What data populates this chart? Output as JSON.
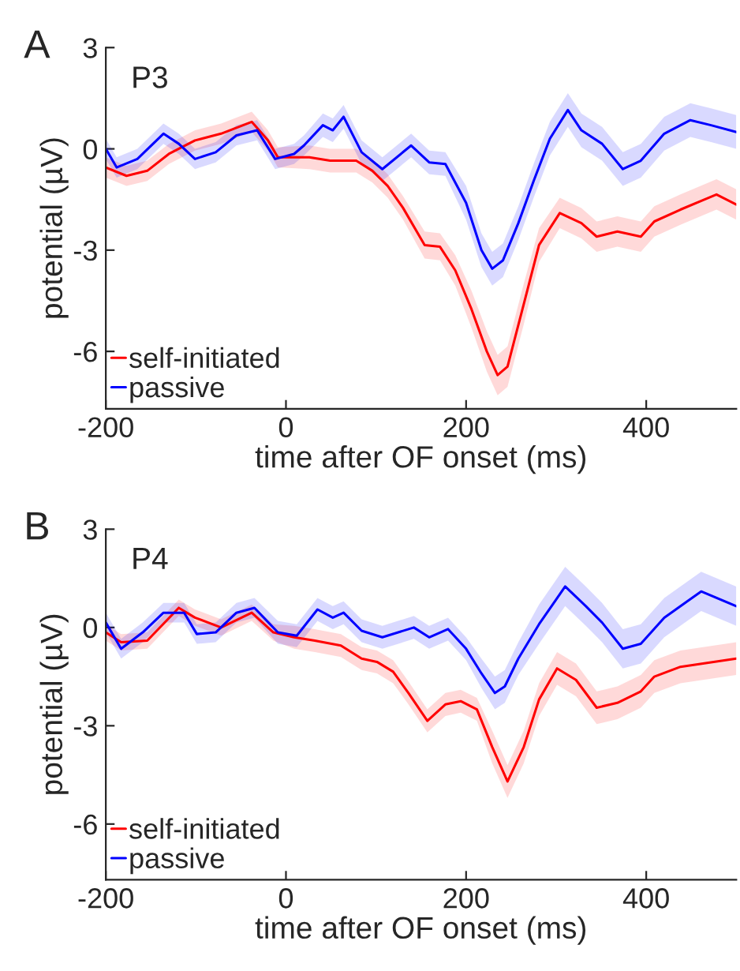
{
  "chart_data": [
    {
      "type": "line",
      "annotations": [
        "A",
        "P3"
      ],
      "xlabel": "time after OF onset (ms)",
      "ylabel": "potential (µV)",
      "xlim": [
        -200,
        500
      ],
      "xticks": [
        -200,
        0,
        200,
        400
      ],
      "ylim": [
        -7.7,
        3
      ],
      "yticks": [
        -6,
        -3,
        0,
        3
      ],
      "legend": "bottom left",
      "grid": false,
      "series": [
        {
          "name": "self-initiated",
          "color": "#ff0000",
          "x": [
            -200,
            -177,
            -154,
            -130,
            -101,
            -72,
            -38,
            -20,
            -9,
            26,
            49,
            78,
            96,
            113,
            130,
            154,
            171,
            188,
            206,
            223,
            235,
            246,
            264,
            281,
            304,
            328,
            345,
            368,
            394,
            409,
            438,
            478,
            500
          ],
          "values": [
            -0.55,
            -0.8,
            -0.65,
            -0.15,
            0.25,
            0.45,
            0.8,
            0.25,
            -0.25,
            -0.25,
            -0.35,
            -0.35,
            -0.65,
            -1.1,
            -1.75,
            -2.85,
            -2.9,
            -3.6,
            -4.75,
            -6.0,
            -6.7,
            -6.45,
            -4.6,
            -2.85,
            -1.9,
            -2.2,
            -2.6,
            -2.45,
            -2.6,
            -2.15,
            -1.8,
            -1.35,
            -1.65
          ],
          "lower": [
            -0.85,
            -1.1,
            -0.95,
            -0.45,
            -0.05,
            0.15,
            0.5,
            -0.05,
            -0.55,
            -0.6,
            -0.7,
            -0.7,
            -1.0,
            -1.45,
            -2.1,
            -3.25,
            -3.3,
            -4.05,
            -5.3,
            -6.6,
            -7.3,
            -7.05,
            -5.2,
            -3.35,
            -2.35,
            -2.65,
            -3.05,
            -2.9,
            -3.05,
            -2.6,
            -2.25,
            -1.8,
            -2.1
          ],
          "upper": [
            -0.25,
            -0.5,
            -0.35,
            0.15,
            0.55,
            0.75,
            1.1,
            0.55,
            0.05,
            0.1,
            0.0,
            0.0,
            -0.3,
            -0.75,
            -1.4,
            -2.45,
            -2.5,
            -3.15,
            -4.2,
            -5.4,
            -6.1,
            -5.85,
            -4.0,
            -2.35,
            -1.45,
            -1.75,
            -2.15,
            -2.0,
            -2.15,
            -1.7,
            -1.35,
            -0.9,
            -1.2
          ]
        },
        {
          "name": "passive",
          "color": "#0000ff",
          "x": [
            -200,
            -188,
            -165,
            -136,
            -119,
            -101,
            -78,
            -55,
            -32,
            -12,
            9,
            20,
            41,
            52,
            64,
            84,
            107,
            139,
            159,
            177,
            200,
            217,
            229,
            241,
            258,
            275,
            293,
            313,
            328,
            351,
            374,
            394,
            420,
            449,
            472,
            500
          ],
          "values": [
            0,
            -0.55,
            -0.3,
            0.45,
            0.15,
            -0.3,
            -0.1,
            0.4,
            0.55,
            -0.3,
            -0.15,
            0.1,
            0.7,
            0.55,
            0.95,
            -0.1,
            -0.6,
            0.1,
            -0.4,
            -0.45,
            -1.6,
            -3.0,
            -3.55,
            -3.3,
            -2.2,
            -0.95,
            0.3,
            1.15,
            0.55,
            0.15,
            -0.6,
            -0.35,
            0.45,
            0.85,
            0.7,
            0.5
          ],
          "lower": [
            -0.3,
            -0.85,
            -0.6,
            0.15,
            -0.15,
            -0.6,
            -0.4,
            0.1,
            0.25,
            -0.6,
            -0.45,
            -0.2,
            0.35,
            0.2,
            0.6,
            -0.45,
            -0.95,
            -0.25,
            -0.75,
            -0.8,
            -2.1,
            -3.5,
            -4.05,
            -3.8,
            -2.7,
            -1.45,
            -0.2,
            0.65,
            0.05,
            -0.35,
            -1.1,
            -0.85,
            -0.05,
            0.35,
            0.2,
            0.0
          ],
          "upper": [
            0.3,
            -0.25,
            0.0,
            0.75,
            0.45,
            0.0,
            0.2,
            0.7,
            0.85,
            0.0,
            0.15,
            0.4,
            1.05,
            0.9,
            1.3,
            0.25,
            -0.25,
            0.45,
            -0.05,
            -0.1,
            -1.1,
            -2.5,
            -3.05,
            -2.8,
            -1.7,
            -0.45,
            0.8,
            1.65,
            1.05,
            0.65,
            -0.1,
            0.15,
            0.95,
            1.35,
            1.2,
            1.0
          ]
        }
      ]
    },
    {
      "type": "line",
      "annotations": [
        "B",
        "P4"
      ],
      "xlabel": "time after OF onset (ms)",
      "ylabel": "potential (µV)",
      "xlim": [
        -200,
        500
      ],
      "xticks": [
        -200,
        0,
        200,
        400
      ],
      "ylim": [
        -7.7,
        3
      ],
      "yticks": [
        -6,
        -3,
        0,
        3
      ],
      "legend": "bottom left",
      "grid": false,
      "series": [
        {
          "name": "self-initiated",
          "color": "#ff0000",
          "x": [
            -200,
            -183,
            -154,
            -119,
            -101,
            -72,
            -38,
            -14,
            9,
            32,
            61,
            84,
            101,
            119,
            136,
            157,
            177,
            194,
            212,
            229,
            246,
            264,
            281,
            301,
            322,
            345,
            368,
            394,
            409,
            438,
            500
          ],
          "values": [
            -0.15,
            -0.45,
            -0.4,
            0.6,
            0.3,
            0,
            0.45,
            -0.15,
            -0.3,
            -0.4,
            -0.55,
            -0.95,
            -1.05,
            -1.35,
            -2.0,
            -2.85,
            -2.35,
            -2.25,
            -2.5,
            -3.65,
            -4.7,
            -3.65,
            -2.2,
            -1.25,
            -1.6,
            -2.45,
            -2.3,
            -1.95,
            -1.5,
            -1.2,
            -0.95
          ],
          "lower": [
            -0.4,
            -0.7,
            -0.65,
            0.35,
            0.05,
            -0.25,
            0.2,
            -0.4,
            -0.65,
            -0.75,
            -0.9,
            -1.3,
            -1.4,
            -1.7,
            -2.35,
            -3.2,
            -2.7,
            -2.6,
            -2.85,
            -4.15,
            -5.2,
            -4.15,
            -2.7,
            -1.75,
            -2.1,
            -2.95,
            -2.8,
            -2.45,
            -2.0,
            -1.7,
            -1.45
          ],
          "upper": [
            0.1,
            -0.2,
            -0.15,
            0.85,
            0.55,
            0.25,
            0.7,
            0.1,
            0.05,
            -0.05,
            -0.2,
            -0.6,
            -0.7,
            -1.0,
            -1.65,
            -2.5,
            -2.0,
            -1.9,
            -2.15,
            -3.15,
            -4.2,
            -3.15,
            -1.7,
            -0.75,
            -1.1,
            -1.95,
            -1.8,
            -1.45,
            -1.0,
            -0.7,
            -0.45
          ]
        },
        {
          "name": "passive",
          "color": "#0000ff",
          "x": [
            -200,
            -183,
            -159,
            -136,
            -113,
            -99,
            -78,
            -55,
            -35,
            -9,
            12,
            35,
            52,
            64,
            84,
            107,
            142,
            159,
            180,
            200,
            217,
            232,
            243,
            258,
            281,
            310,
            333,
            351,
            374,
            394,
            420,
            461,
            500
          ],
          "values": [
            0.15,
            -0.65,
            -0.15,
            0.45,
            0.45,
            -0.2,
            -0.15,
            0.45,
            0.6,
            -0.15,
            -0.25,
            0.55,
            0.3,
            0.45,
            -0.1,
            -0.3,
            0,
            -0.3,
            -0.05,
            -0.65,
            -1.4,
            -2.0,
            -1.8,
            -0.95,
            0.1,
            1.25,
            0.65,
            0.15,
            -0.65,
            -0.5,
            0.3,
            1.1,
            0.65
          ],
          "lower": [
            -0.15,
            -0.95,
            -0.45,
            0.15,
            0.15,
            -0.5,
            -0.45,
            0.15,
            0.3,
            -0.5,
            -0.6,
            0.2,
            -0.05,
            0.1,
            -0.45,
            -0.65,
            -0.35,
            -0.65,
            -0.4,
            -1.0,
            -1.85,
            -2.5,
            -2.3,
            -1.45,
            -0.5,
            0.65,
            0.05,
            -0.45,
            -1.25,
            -1.1,
            -0.3,
            0.5,
            0.05
          ],
          "upper": [
            0.45,
            -0.35,
            0.15,
            0.75,
            0.75,
            0.1,
            0.15,
            0.75,
            0.9,
            0.2,
            0.1,
            0.9,
            0.65,
            0.8,
            0.25,
            0.05,
            0.35,
            0.05,
            0.3,
            -0.3,
            -0.95,
            -1.5,
            -1.3,
            -0.45,
            0.7,
            1.85,
            1.25,
            0.75,
            -0.05,
            0.1,
            0.9,
            1.7,
            1.25
          ]
        }
      ]
    }
  ]
}
